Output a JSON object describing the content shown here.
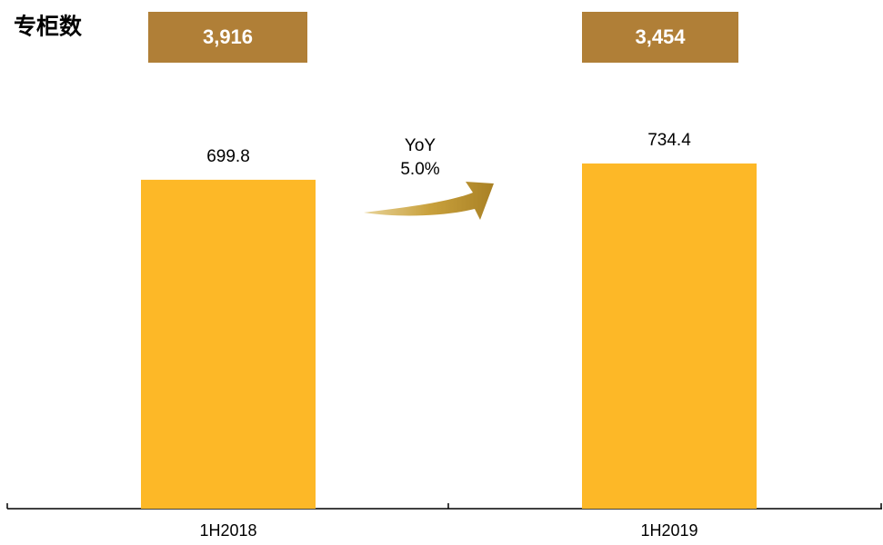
{
  "chart_data": {
    "type": "bar",
    "categories": [
      "1H2018",
      "1H2019"
    ],
    "values": [
      699.8,
      734.4
    ],
    "color": "#FDB827",
    "annotations": [
      "YoY",
      "5.0%"
    ],
    "counter": {
      "title": "专柜数",
      "values": [
        3916,
        3454
      ],
      "value_labels": [
        "3,916",
        "3,454"
      ],
      "color": "#B07F37"
    }
  }
}
